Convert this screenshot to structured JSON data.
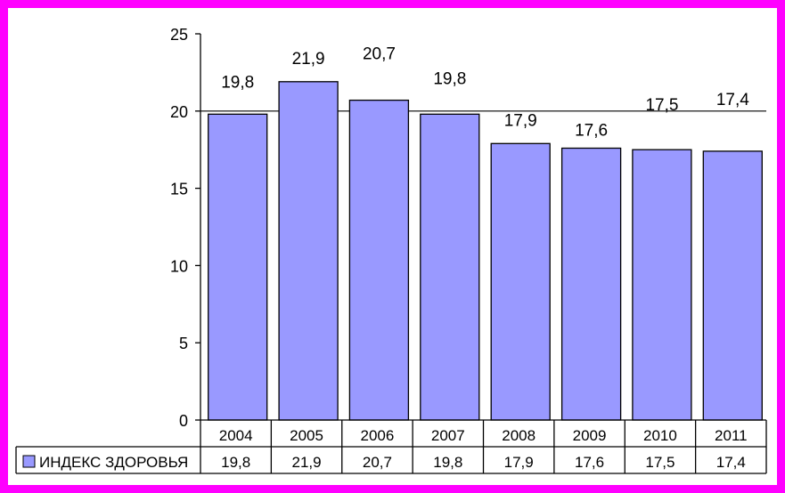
{
  "chart_data": {
    "type": "bar",
    "title": "",
    "xlabel": "",
    "ylabel": "",
    "categories": [
      "2004",
      "2005",
      "2006",
      "2007",
      "2008",
      "2009",
      "2010",
      "2011"
    ],
    "series": [
      {
        "name": "ИНДЕКС ЗДОРОВЬЯ",
        "values": [
          19.8,
          21.9,
          20.7,
          19.8,
          17.9,
          17.6,
          17.5,
          17.4
        ],
        "labels": [
          "19,8",
          "21,9",
          "20,7",
          "19,8",
          "17,9",
          "17,6",
          "17,5",
          "17,4"
        ],
        "color": "#9999ff"
      }
    ],
    "ylim": [
      0,
      25
    ],
    "yticks": [
      0,
      5,
      10,
      15,
      20,
      25
    ],
    "grid": "horizontal line at 20",
    "legend": "data table below axis",
    "data_table": true
  },
  "colors": {
    "border": "#ff00ff",
    "bar": "#9999ff",
    "background": "#ffffff"
  }
}
